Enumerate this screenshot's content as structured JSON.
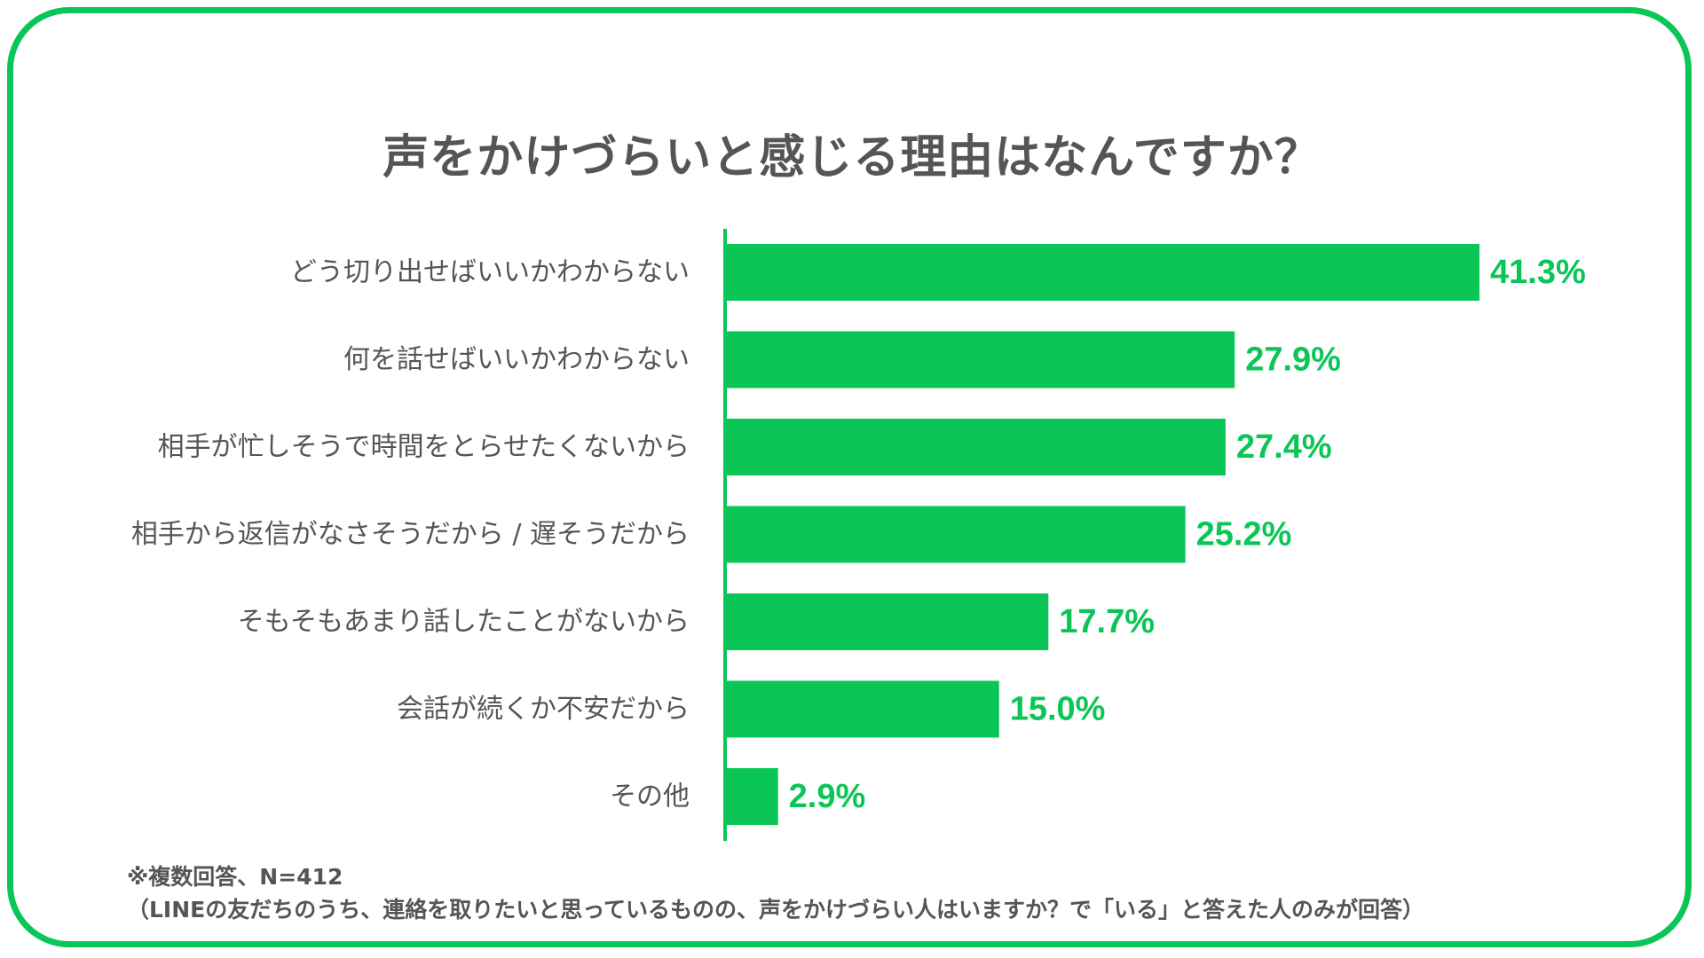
{
  "title": "声をかけづらいと感じる理由はなんですか？",
  "notes": {
    "line1": "※複数回答、N=412",
    "line2": "（LINEの友だちのうち、連絡を取りたいと思っているものの、声をかけづらい人はいますか？で「いる」と答えた人のみが回答）"
  },
  "colors": {
    "accent": "#0ac656",
    "text": "#555555"
  },
  "chart_data": {
    "type": "bar",
    "orientation": "horizontal",
    "title": "声をかけづらいと感じる理由はなんですか？",
    "categories": [
      "どう切り出せばいいかわからない",
      "何を話せばいいかわからない",
      "相手が忙しそうで時間をとらせたくないから",
      "相手から返信がなさそうだから / 遅そうだから",
      "そもそもあまり話したことがないから",
      "会話が続くか不安だから",
      "その他"
    ],
    "values": [
      41.3,
      27.9,
      27.4,
      25.2,
      17.7,
      15.0,
      2.9
    ],
    "value_labels": [
      "41.3%",
      "27.9%",
      "27.4%",
      "25.2%",
      "17.7%",
      "15.0%",
      "2.9%"
    ],
    "xlim": [
      0,
      41.3
    ],
    "grid": false,
    "legend": "none"
  }
}
